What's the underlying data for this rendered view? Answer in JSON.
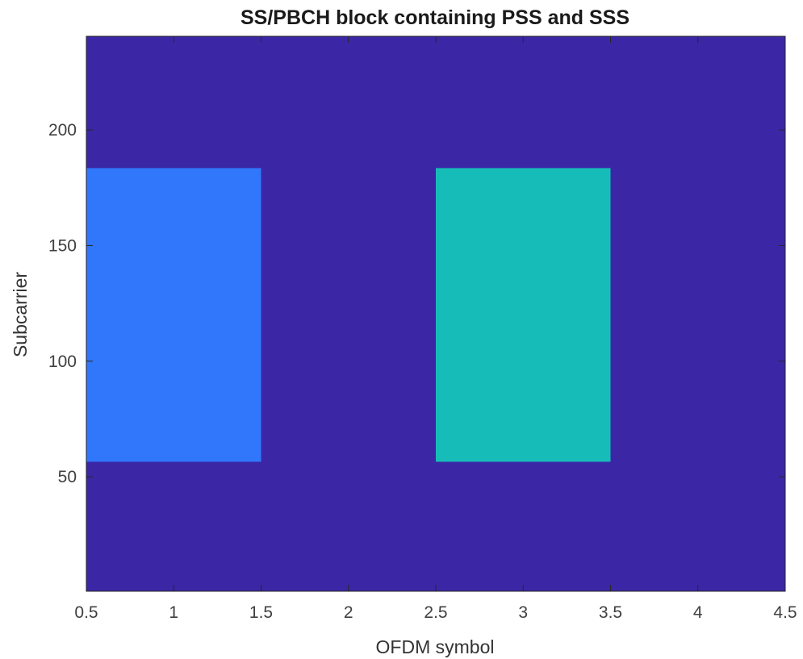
{
  "chart_data": {
    "type": "heatmap",
    "title": "SS/PBCH block containing PSS and SSS",
    "xlabel": "OFDM symbol",
    "ylabel": "Subcarrier",
    "xlim": [
      0.5,
      4.5
    ],
    "ylim": [
      0.5,
      240.5
    ],
    "xticks": [
      0.5,
      1,
      1.5,
      2,
      2.5,
      3,
      3.5,
      4,
      4.5
    ],
    "xtick_labels": [
      "0.5",
      "1",
      "1.5",
      "2",
      "2.5",
      "3",
      "3.5",
      "4",
      "4.5"
    ],
    "yticks": [
      50,
      100,
      150,
      200
    ],
    "ytick_labels": [
      "50",
      "100",
      "150",
      "200"
    ],
    "grid": false,
    "colors": {
      "background": "#3b27a6",
      "pss": "#3077fb",
      "sss": "#16bdb8"
    },
    "cells": [
      {
        "symbol": 1,
        "subcarrier_range": [
          57,
          183
        ],
        "color": "#3077fb"
      },
      {
        "symbol": 3,
        "subcarrier_range": [
          57,
          183
        ],
        "color": "#16bdb8"
      }
    ]
  }
}
